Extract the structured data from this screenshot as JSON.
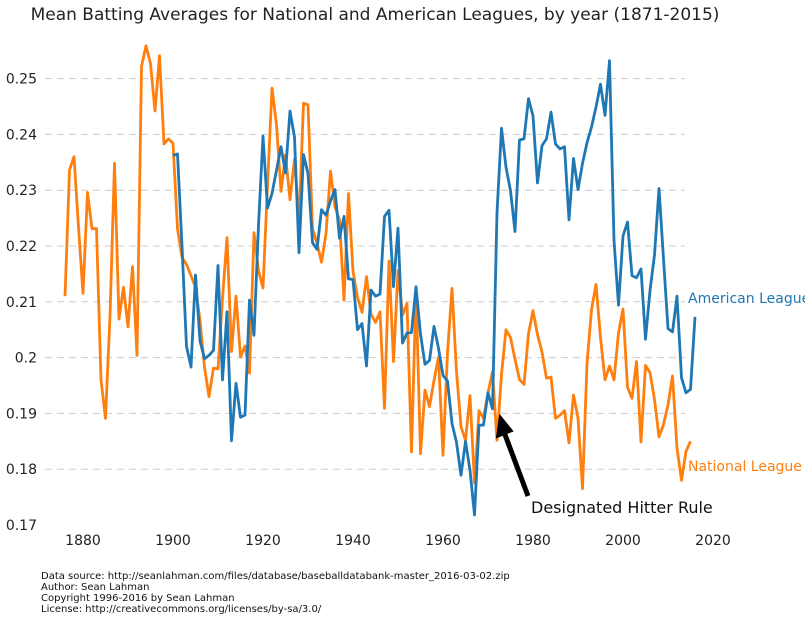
{
  "chart_data": {
    "type": "line",
    "title": "Mean Batting Averages for National and American Leagues, by year (1871-2015)",
    "xlabel": "",
    "ylabel": "",
    "xlim": [
      1871,
      2016
    ],
    "ylim": [
      0.17,
      0.255
    ],
    "grid": "horizontal dashed",
    "xticks": [
      "1880",
      "1900",
      "1920",
      "1940",
      "1960",
      "1980",
      "2000",
      "2020"
    ],
    "yticks": [
      "0.17",
      "0.18",
      "0.19",
      "0.2",
      "0.21",
      "0.22",
      "0.23",
      "0.24",
      "0.25"
    ],
    "series": [
      {
        "name": "American League",
        "color": "#1f77b4",
        "points": [
          [
            1900,
            0.2362
          ],
          [
            1901,
            0.2365
          ],
          [
            1902,
            0.22
          ],
          [
            1903,
            0.202
          ],
          [
            1904,
            0.1983
          ],
          [
            1905,
            0.2148
          ],
          [
            1906,
            0.203
          ],
          [
            1907,
            0.1998
          ],
          [
            1908,
            0.2004
          ],
          [
            1909,
            0.2013
          ],
          [
            1910,
            0.2165
          ],
          [
            1911,
            0.196
          ],
          [
            1912,
            0.2082
          ],
          [
            1913,
            0.1851
          ],
          [
            1914,
            0.1954
          ],
          [
            1915,
            0.1893
          ],
          [
            1916,
            0.1897
          ],
          [
            1917,
            0.2103
          ],
          [
            1918,
            0.204
          ],
          [
            1919,
            0.2237
          ],
          [
            1920,
            0.2397
          ],
          [
            1921,
            0.2268
          ],
          [
            1922,
            0.2294
          ],
          [
            1923,
            0.2336
          ],
          [
            1924,
            0.2378
          ],
          [
            1925,
            0.2331
          ],
          [
            1926,
            0.2442
          ],
          [
            1927,
            0.2395
          ],
          [
            1928,
            0.2188
          ],
          [
            1929,
            0.2364
          ],
          [
            1930,
            0.233
          ],
          [
            1931,
            0.2206
          ],
          [
            1932,
            0.2194
          ],
          [
            1933,
            0.2265
          ],
          [
            1934,
            0.2255
          ],
          [
            1935,
            0.2281
          ],
          [
            1936,
            0.2301
          ],
          [
            1937,
            0.2214
          ],
          [
            1938,
            0.2253
          ],
          [
            1939,
            0.2141
          ],
          [
            1940,
            0.214
          ],
          [
            1941,
            0.205
          ],
          [
            1942,
            0.2061
          ],
          [
            1943,
            0.1985
          ],
          [
            1944,
            0.2121
          ],
          [
            1945,
            0.211
          ],
          [
            1946,
            0.2114
          ],
          [
            1947,
            0.2253
          ],
          [
            1948,
            0.2264
          ],
          [
            1949,
            0.2127
          ],
          [
            1950,
            0.2232
          ],
          [
            1951,
            0.2026
          ],
          [
            1952,
            0.2044
          ],
          [
            1953,
            0.2045
          ],
          [
            1954,
            0.2127
          ],
          [
            1955,
            0.2042
          ],
          [
            1956,
            0.1988
          ],
          [
            1957,
            0.1995
          ],
          [
            1958,
            0.2056
          ],
          [
            1959,
            0.2017
          ],
          [
            1960,
            0.1968
          ],
          [
            1961,
            0.1958
          ],
          [
            1962,
            0.1882
          ],
          [
            1963,
            0.1848
          ],
          [
            1964,
            0.1789
          ],
          [
            1965,
            0.185
          ],
          [
            1966,
            0.1798
          ],
          [
            1967,
            0.1718
          ],
          [
            1968,
            0.1879
          ],
          [
            1969,
            0.1879
          ],
          [
            1970,
            0.1937
          ],
          [
            1971,
            0.1908
          ],
          [
            1972,
            0.226
          ],
          [
            1973,
            0.2411
          ],
          [
            1974,
            0.2341
          ],
          [
            1975,
            0.2299
          ],
          [
            1976,
            0.2226
          ],
          [
            1977,
            0.239
          ],
          [
            1978,
            0.2392
          ],
          [
            1979,
            0.2464
          ],
          [
            1980,
            0.2433
          ],
          [
            1981,
            0.2313
          ],
          [
            1982,
            0.238
          ],
          [
            1983,
            0.2392
          ],
          [
            1984,
            0.244
          ],
          [
            1985,
            0.2383
          ],
          [
            1986,
            0.2374
          ],
          [
            1987,
            0.2378
          ],
          [
            1988,
            0.2247
          ],
          [
            1989,
            0.2357
          ],
          [
            1990,
            0.2301
          ],
          [
            1991,
            0.2348
          ],
          [
            1992,
            0.2385
          ],
          [
            1993,
            0.2413
          ],
          [
            1994,
            0.2449
          ],
          [
            1995,
            0.249
          ],
          [
            1996,
            0.2434
          ],
          [
            1997,
            0.2532
          ],
          [
            1998,
            0.221
          ],
          [
            1999,
            0.2094
          ],
          [
            2000,
            0.2218
          ],
          [
            2001,
            0.2243
          ],
          [
            2002,
            0.2147
          ],
          [
            2003,
            0.2143
          ],
          [
            2004,
            0.2159
          ],
          [
            2005,
            0.2033
          ],
          [
            2006,
            0.212
          ],
          [
            2007,
            0.2184
          ],
          [
            2008,
            0.2303
          ],
          [
            2009,
            0.2177
          ],
          [
            2010,
            0.2052
          ],
          [
            2011,
            0.2046
          ],
          [
            2012,
            0.211
          ],
          [
            2013,
            0.1964
          ],
          [
            2014,
            0.1937
          ],
          [
            2015,
            0.1943
          ],
          [
            2016,
            0.2073
          ]
        ]
      },
      {
        "name": "National League",
        "color": "#ff7f0e",
        "points": [
          [
            1876,
            0.211
          ],
          [
            1877,
            0.2336
          ],
          [
            1878,
            0.236
          ],
          [
            1879,
            0.2234
          ],
          [
            1880,
            0.2115
          ],
          [
            1881,
            0.2296
          ],
          [
            1882,
            0.2231
          ],
          [
            1883,
            0.2231
          ],
          [
            1884,
            0.196
          ],
          [
            1885,
            0.1891
          ],
          [
            1886,
            0.2075
          ],
          [
            1887,
            0.2348
          ],
          [
            1888,
            0.2069
          ],
          [
            1889,
            0.2126
          ],
          [
            1890,
            0.2055
          ],
          [
            1891,
            0.2163
          ],
          [
            1892,
            0.2004
          ],
          [
            1893,
            0.2522
          ],
          [
            1894,
            0.2559
          ],
          [
            1895,
            0.2527
          ],
          [
            1896,
            0.2442
          ],
          [
            1897,
            0.2541
          ],
          [
            1898,
            0.2383
          ],
          [
            1899,
            0.2392
          ],
          [
            1900,
            0.2384
          ],
          [
            1901,
            0.2231
          ],
          [
            1902,
            0.218
          ],
          [
            1903,
            0.2167
          ],
          [
            1904,
            0.2147
          ],
          [
            1905,
            0.2126
          ],
          [
            1906,
            0.2067
          ],
          [
            1907,
            0.1983
          ],
          [
            1908,
            0.193
          ],
          [
            1909,
            0.1981
          ],
          [
            1910,
            0.198
          ],
          [
            1911,
            0.2106
          ],
          [
            1912,
            0.2215
          ],
          [
            1913,
            0.2011
          ],
          [
            1914,
            0.211
          ],
          [
            1915,
            0.2001
          ],
          [
            1916,
            0.2021
          ],
          [
            1917,
            0.1972
          ],
          [
            1918,
            0.2224
          ],
          [
            1919,
            0.2156
          ],
          [
            1920,
            0.2125
          ],
          [
            1921,
            0.2308
          ],
          [
            1922,
            0.2483
          ],
          [
            1923,
            0.2417
          ],
          [
            1924,
            0.2298
          ],
          [
            1925,
            0.2363
          ],
          [
            1926,
            0.2283
          ],
          [
            1927,
            0.2356
          ],
          [
            1928,
            0.2243
          ],
          [
            1929,
            0.2456
          ],
          [
            1930,
            0.2453
          ],
          [
            1931,
            0.2231
          ],
          [
            1932,
            0.2205
          ],
          [
            1933,
            0.2171
          ],
          [
            1934,
            0.2222
          ],
          [
            1935,
            0.2334
          ],
          [
            1936,
            0.227
          ],
          [
            1937,
            0.2247
          ],
          [
            1938,
            0.2103
          ],
          [
            1939,
            0.2294
          ],
          [
            1940,
            0.2155
          ],
          [
            1941,
            0.2108
          ],
          [
            1942,
            0.2081
          ],
          [
            1943,
            0.2145
          ],
          [
            1944,
            0.2078
          ],
          [
            1945,
            0.2063
          ],
          [
            1946,
            0.2082
          ],
          [
            1947,
            0.1909
          ],
          [
            1948,
            0.2173
          ],
          [
            1949,
            0.1993
          ],
          [
            1950,
            0.2156
          ],
          [
            1951,
            0.2076
          ],
          [
            1952,
            0.2097
          ],
          [
            1953,
            0.1831
          ],
          [
            1954,
            0.2121
          ],
          [
            1955,
            0.1828
          ],
          [
            1956,
            0.1942
          ],
          [
            1957,
            0.1912
          ],
          [
            1958,
            0.1959
          ],
          [
            1959,
            0.2001
          ],
          [
            1960,
            0.1825
          ],
          [
            1961,
            0.2009
          ],
          [
            1962,
            0.2124
          ],
          [
            1963,
            0.1975
          ],
          [
            1964,
            0.1876
          ],
          [
            1965,
            0.1852
          ],
          [
            1966,
            0.1932
          ],
          [
            1967,
            0.1775
          ],
          [
            1968,
            0.1905
          ],
          [
            1969,
            0.1891
          ],
          [
            1970,
            0.1937
          ],
          [
            1971,
            0.1975
          ],
          [
            1972,
            0.1852
          ],
          [
            1973,
            0.197
          ],
          [
            1974,
            0.205
          ],
          [
            1975,
            0.2036
          ],
          [
            1976,
            0.1997
          ],
          [
            1977,
            0.1961
          ],
          [
            1978,
            0.1952
          ],
          [
            1979,
            0.2043
          ],
          [
            1980,
            0.2084
          ],
          [
            1981,
            0.2041
          ],
          [
            1982,
            0.201
          ],
          [
            1983,
            0.1963
          ],
          [
            1984,
            0.1965
          ],
          [
            1985,
            0.1891
          ],
          [
            1986,
            0.1897
          ],
          [
            1987,
            0.1905
          ],
          [
            1988,
            0.1847
          ],
          [
            1989,
            0.1933
          ],
          [
            1990,
            0.1892
          ],
          [
            1991,
            0.1765
          ],
          [
            1992,
            0.1989
          ],
          [
            1993,
            0.2086
          ],
          [
            1994,
            0.2131
          ],
          [
            1995,
            0.2036
          ],
          [
            1996,
            0.196
          ],
          [
            1997,
            0.1985
          ],
          [
            1998,
            0.196
          ],
          [
            1999,
            0.2044
          ],
          [
            2000,
            0.2087
          ],
          [
            2001,
            0.1947
          ],
          [
            2002,
            0.1927
          ],
          [
            2003,
            0.1993
          ],
          [
            2004,
            0.1849
          ],
          [
            2005,
            0.1986
          ],
          [
            2006,
            0.1973
          ],
          [
            2007,
            0.1925
          ],
          [
            2008,
            0.1858
          ],
          [
            2009,
            0.188
          ],
          [
            2010,
            0.1915
          ],
          [
            2011,
            0.1967
          ],
          [
            2012,
            0.1838
          ],
          [
            2013,
            0.178
          ],
          [
            2014,
            0.1832
          ],
          [
            2015,
            0.185
          ]
        ]
      }
    ],
    "series_labels": [
      "American League",
      "National League"
    ],
    "annotation": {
      "text": "Designated Hitter Rule",
      "x": 1973,
      "y": 0.19
    }
  },
  "footer": {
    "lines": [
      "Data source: http://seanlahman.com/files/database/baseballdatabank-master_2016-03-02.zip",
      "Author: Sean Lahman",
      "Copyright 1996-2016 by Sean Lahman",
      "License: http://creativecommons.org/licenses/by-sa/3.0/"
    ]
  }
}
